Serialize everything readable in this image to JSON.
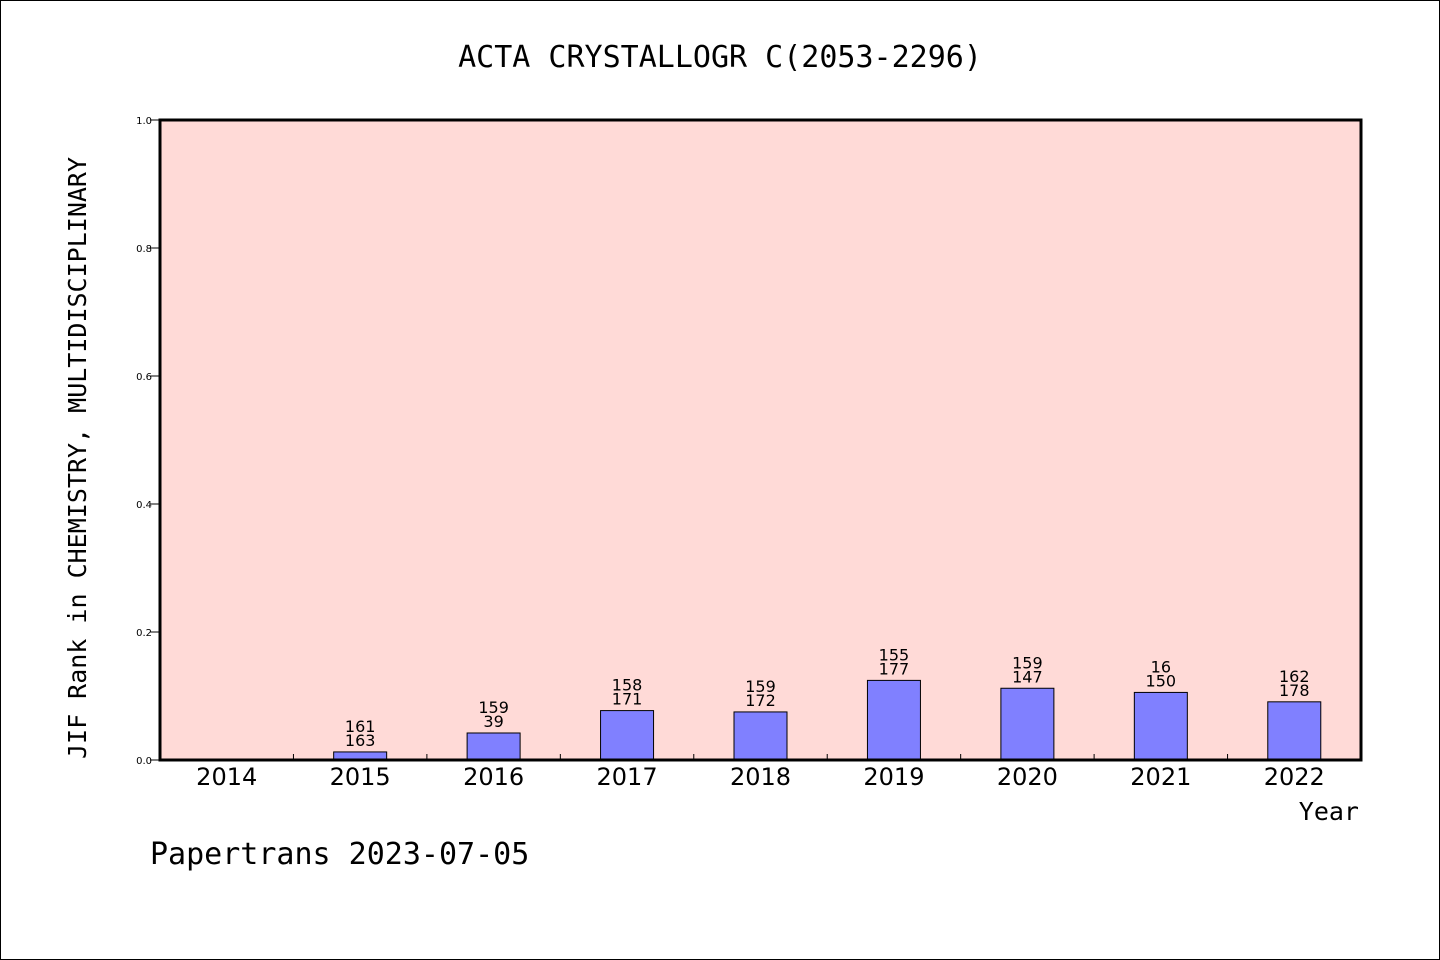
{
  "chart_data": {
    "type": "bar",
    "title": "ACTA CRYSTALLOGR C(2053-2296)",
    "xlabel": "Year",
    "ylabel": "JIF Rank in CHEMISTRY, MULTIDISCIPLINARY",
    "ylim": [
      0,
      1.0
    ],
    "yticks": [
      "0.0",
      "0.2",
      "0.4",
      "0.6",
      "0.8",
      "1.0"
    ],
    "categories": [
      "2014",
      "2015",
      "2016",
      "2017",
      "2018",
      "2019",
      "2020",
      "2021",
      "2022"
    ],
    "values": [
      null,
      0.0126,
      0.0422,
      0.0772,
      0.0751,
      0.1244,
      0.1121,
      0.1056,
      0.0909
    ],
    "labels_top": [
      "",
      "161",
      "159",
      "158",
      "159",
      "155",
      "159",
      "16",
      "162"
    ],
    "labels_bottom": [
      "",
      "163",
      "39",
      "171",
      "172",
      "177",
      "147",
      "150",
      "178"
    ],
    "grid": false,
    "colors": {
      "plot_background": "#ffdad7",
      "bar_fill": "#8080ff",
      "bar_stroke": "#000000"
    }
  },
  "footer": {
    "text": "Papertrans 2023-07-05"
  }
}
